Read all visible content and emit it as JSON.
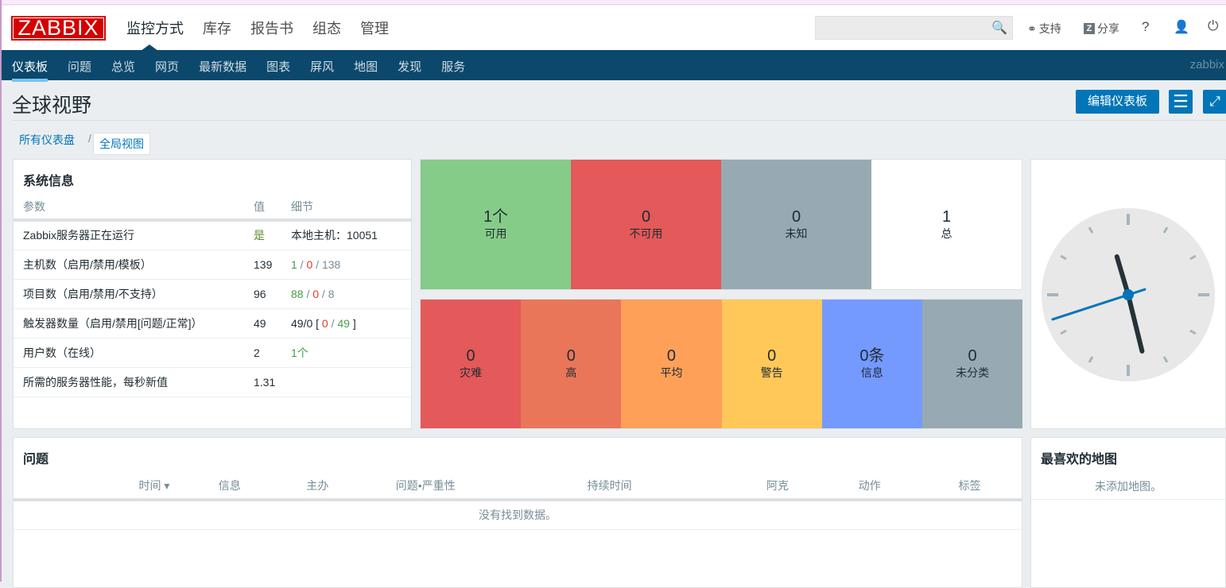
{
  "header": {
    "logo": "ZABBIX",
    "main_nav": [
      "监控方式",
      "库存",
      "报告书",
      "组态",
      "管理"
    ],
    "search_placeholder": "",
    "support": "支持",
    "share": "分享",
    "help": "?",
    "share_badge": "Z"
  },
  "subnav": {
    "items": [
      "仪表板",
      "问题",
      "总览",
      "网页",
      "最新数据",
      "图表",
      "屏风",
      "地图",
      "发现",
      "服务"
    ],
    "user": "zabbix"
  },
  "page": {
    "title": "全球视野",
    "edit_button": "编辑仪表板"
  },
  "breadcrumb": {
    "all": "所有仪表盘",
    "sep": "/",
    "current": "全局视图"
  },
  "system_info": {
    "title": "系统信息",
    "headers": [
      "参数",
      "值",
      "细节"
    ],
    "rows": [
      {
        "param": "Zabbix服务器正在运行",
        "value": "是",
        "details": [
          {
            "t": "本地主机：10051",
            "c": ""
          }
        ]
      },
      {
        "param": "主机数（启用/禁用/模板）",
        "value": "139",
        "details": [
          {
            "t": "1",
            "c": "g"
          },
          {
            "t": " / ",
            "c": "gr"
          },
          {
            "t": "0",
            "c": "r"
          },
          {
            "t": " / ",
            "c": "gr"
          },
          {
            "t": "138",
            "c": "gr"
          }
        ]
      },
      {
        "param": "项目数（启用/禁用/不支持）",
        "value": "96",
        "details": [
          {
            "t": "88",
            "c": "g"
          },
          {
            "t": " / ",
            "c": "gr"
          },
          {
            "t": "0",
            "c": "r"
          },
          {
            "t": " / ",
            "c": "gr"
          },
          {
            "t": "8",
            "c": "gr"
          }
        ]
      },
      {
        "param": "触发器数量（启用/禁用[问题/正常]）",
        "value": "49",
        "details": [
          {
            "t": "49/0 [ ",
            "c": ""
          },
          {
            "t": "0",
            "c": "r"
          },
          {
            "t": " / ",
            "c": "gr"
          },
          {
            "t": "49",
            "c": "g"
          },
          {
            "t": " ]",
            "c": ""
          }
        ]
      },
      {
        "param": "用户数（在线）",
        "value": "2",
        "details": [
          {
            "t": "1个",
            "c": "g"
          }
        ]
      },
      {
        "param": "所需的服务器性能，每秒新值",
        "value": "1.31",
        "details": []
      }
    ]
  },
  "host_availability": [
    {
      "count": "1个",
      "label": "可用",
      "color": "#86cc89"
    },
    {
      "count": "0",
      "label": "不可用",
      "color": "#e45959"
    },
    {
      "count": "0",
      "label": "未知",
      "color": "#97aab3"
    },
    {
      "count": "1",
      "label": "总",
      "color": "#ffffff"
    }
  ],
  "severity": [
    {
      "count": "0",
      "label": "灾难",
      "color": "#e45959"
    },
    {
      "count": "0",
      "label": "高",
      "color": "#e97659"
    },
    {
      "count": "0",
      "label": "平均",
      "color": "#ffa059"
    },
    {
      "count": "0",
      "label": "警告",
      "color": "#ffc859"
    },
    {
      "count": "0条",
      "label": "信息",
      "color": "#7499ff"
    },
    {
      "count": "0",
      "label": "未分类",
      "color": "#97aab3"
    }
  ],
  "clock": {
    "hours": 11,
    "minutes": 27,
    "seconds": 42
  },
  "problems": {
    "title": "问题",
    "headers": [
      "时间 ▾",
      "信息",
      "主办",
      "问题•严重性",
      "持续时间",
      "阿克",
      "动作",
      "标签"
    ],
    "empty": "没有找到数据。"
  },
  "fav_maps": {
    "title": "最喜欢的地图",
    "empty": "未添加地图。"
  }
}
